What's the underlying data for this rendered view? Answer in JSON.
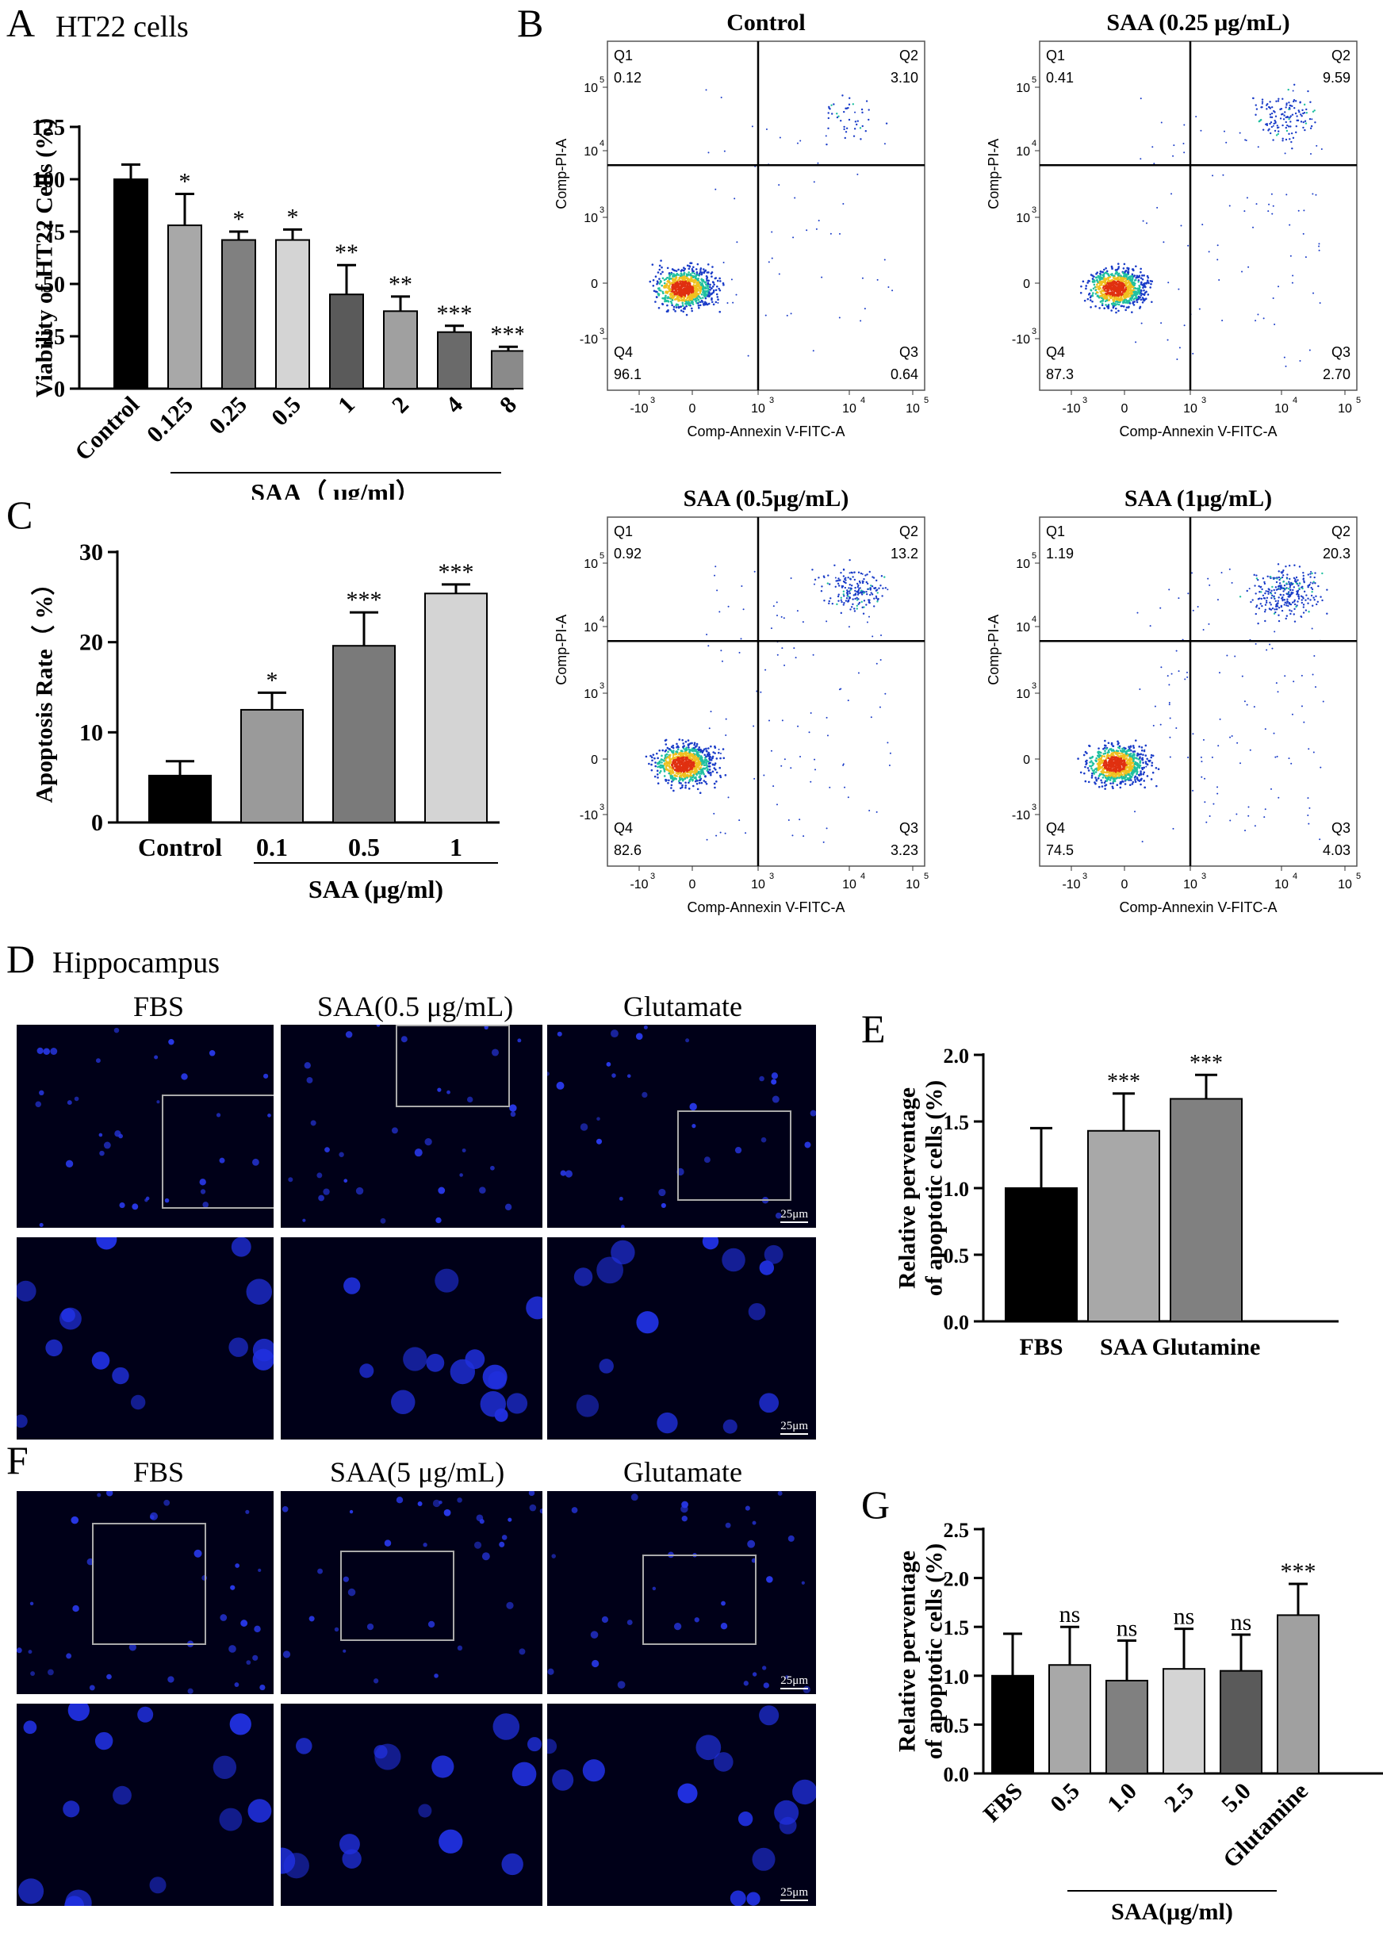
{
  "panel_letters": {
    "A": "A",
    "B": "B",
    "C": "C",
    "D": "D",
    "E": "E",
    "F": "F",
    "G": "G"
  },
  "panel_titles": {
    "A": "HT22 cells",
    "D": "Hippocampus"
  },
  "chart_data": [
    {
      "id": "A",
      "type": "bar",
      "categories": [
        "Control",
        "0.125",
        "0.25",
        "0.5",
        "1",
        "2",
        "4",
        "8"
      ],
      "values": [
        100,
        78,
        71,
        71,
        45,
        37,
        27,
        18
      ],
      "errors": [
        7,
        15,
        4,
        5,
        14,
        7,
        3,
        2
      ],
      "significance": [
        "",
        "*",
        "*",
        "*",
        "**",
        "**",
        "***",
        "***"
      ],
      "colors": [
        "#000000",
        "#a8a8a8",
        "#808080",
        "#d4d4d4",
        "#5a5a5a",
        "#a0a0a0",
        "#6a6a6a",
        "#8a8a8a"
      ],
      "ylabel": "Viability of HT22 Cells (%)",
      "group_label": "SAA（ μg/ml）",
      "ylim": [
        0,
        125
      ],
      "yticks": [
        0,
        25,
        50,
        75,
        100,
        125
      ],
      "xlabel_rotation": -45
    },
    {
      "id": "C",
      "type": "bar",
      "categories": [
        "Control",
        "0.1",
        "0.5",
        "1"
      ],
      "values": [
        5.2,
        12.5,
        19.6,
        25.4
      ],
      "errors": [
        1.6,
        1.9,
        3.7,
        1.0
      ],
      "significance": [
        "",
        "*",
        "***",
        "***"
      ],
      "colors": [
        "#000000",
        "#9a9a9a",
        "#7a7a7a",
        "#d4d4d4"
      ],
      "ylabel": "Apoptosis Rate（ %）",
      "group_label": "SAA (μg/ml)",
      "ylim": [
        0,
        30
      ],
      "yticks": [
        0,
        10,
        20,
        30
      ]
    },
    {
      "id": "E",
      "type": "bar",
      "categories": [
        "FBS",
        "SAA",
        "Glutamine"
      ],
      "values": [
        1.0,
        1.43,
        1.67
      ],
      "errors": [
        0.45,
        0.28,
        0.18
      ],
      "significance": [
        "",
        "***",
        "***"
      ],
      "colors": [
        "#000000",
        "#a8a8a8",
        "#808080"
      ],
      "ylabel": "Relative perventage\nof apoptotic cells (%)",
      "ylim": [
        0,
        2.0
      ],
      "yticks": [
        "0.0",
        "0.5",
        "1.0",
        "1.5",
        "2.0"
      ]
    },
    {
      "id": "G",
      "type": "bar",
      "categories": [
        "FBS",
        "0.5",
        "1.0",
        "2.5",
        "5.0",
        "Glutamine"
      ],
      "values": [
        1.0,
        1.11,
        0.95,
        1.07,
        1.05,
        1.62
      ],
      "errors": [
        0.43,
        0.39,
        0.41,
        0.41,
        0.37,
        0.32
      ],
      "significance": [
        "",
        "ns",
        "ns",
        "ns",
        "ns",
        "***"
      ],
      "colors": [
        "#000000",
        "#a8a8a8",
        "#808080",
        "#d4d4d4",
        "#5a5a5a",
        "#a0a0a0"
      ],
      "ylabel": "Relative perventage\nof apoptotic cells (%)",
      "group_label": "SAA(μg/ml)",
      "ylim": [
        0,
        2.5
      ],
      "yticks": [
        "0.0",
        "0.5",
        "1.0",
        "1.5",
        "2.0",
        "2.5"
      ],
      "xlabel_rotation": -45
    },
    {
      "id": "B",
      "type": "scatter",
      "subtype": "flow-cytometry-quadrant",
      "xlabel": "Comp-Annexin V-FITC-A",
      "ylabel": "Comp-PI-A",
      "xticks": [
        "-10",
        "0",
        "10",
        "10",
        "10"
      ],
      "xtick_exponents": [
        "3",
        "",
        "3",
        "4",
        "5"
      ],
      "yticks": [
        "-10",
        "0",
        "10",
        "10",
        "10"
      ],
      "ytick_exponents": [
        "3",
        "",
        "3",
        "4",
        "5"
      ],
      "plots": [
        {
          "title": "Control",
          "Q1": "0.12",
          "Q2": "3.10",
          "Q3": "0.64",
          "Q4": "96.1"
        },
        {
          "title": "SAA (0.25 μg/mL)",
          "Q1": "0.41",
          "Q2": "9.59",
          "Q3": "2.70",
          "Q4": "87.3"
        },
        {
          "title": "SAA (0.5μg/mL)",
          "Q1": "0.92",
          "Q2": "13.2",
          "Q3": "3.23",
          "Q4": "82.6"
        },
        {
          "title": "SAA (1μg/mL)",
          "Q1": "1.19",
          "Q2": "20.3",
          "Q3": "4.03",
          "Q4": "74.5"
        }
      ],
      "quadrant_labels": [
        "Q1",
        "Q2",
        "Q3",
        "Q4"
      ]
    }
  ],
  "micrographs": {
    "D": {
      "labels": [
        "FBS",
        "SAA(0.5 μg/mL)",
        "Glutamate"
      ],
      "scale": "25μm"
    },
    "F": {
      "labels": [
        "FBS",
        "SAA(5 μg/mL)",
        "Glutamate"
      ],
      "scale": "25μm"
    }
  }
}
